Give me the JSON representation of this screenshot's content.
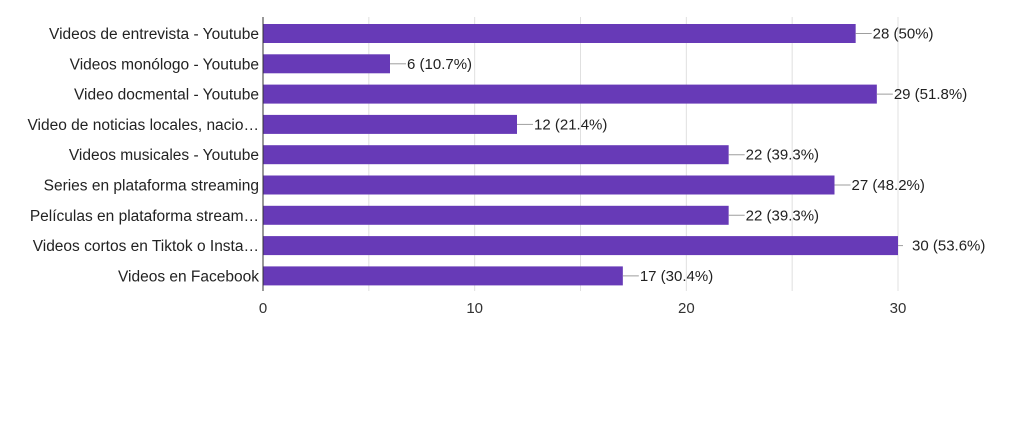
{
  "chart_data": {
    "type": "bar",
    "orientation": "horizontal",
    "categories": [
      "Videos de entrevista - Youtube",
      "Videos monólogo - Youtube",
      "Video docmental - Youtube",
      "Video de noticias locales, nacio…",
      "Videos musicales - Youtube",
      "Series en plataforma streaming",
      "Películas en plataforma stream…",
      "Videos cortos en Tiktok o Insta…",
      "Videos en Facebook"
    ],
    "values": [
      28,
      6,
      29,
      12,
      22,
      27,
      22,
      30,
      17
    ],
    "data_labels": [
      "28 (50%)",
      "6 (10.7%)",
      "29 (51.8%)",
      "12 (21.4%)",
      "22 (39.3%)",
      "27 (48.2%)",
      "22 (39.3%)",
      "30 (53.6%)",
      "17 (30.4%)"
    ],
    "xlim": [
      0,
      30
    ],
    "xticks": [
      "0",
      "10",
      "20",
      "30"
    ],
    "grid": true,
    "bar_color": "#673ab7",
    "title": "",
    "xlabel": "",
    "ylabel": ""
  }
}
